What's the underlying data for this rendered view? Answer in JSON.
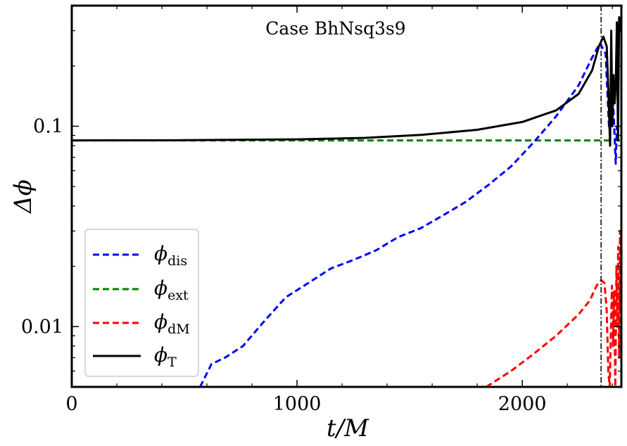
{
  "chart_data": {
    "type": "line",
    "annotation": "Case BhNsq3s9",
    "xlabel": "t/M",
    "ylabel": "Δϕ",
    "xlim": [
      0,
      2440
    ],
    "ylim": [
      0.005,
      0.4
    ],
    "yscale": "log",
    "x_ticks": [
      {
        "value": 0,
        "label": "0"
      },
      {
        "value": 1000,
        "label": "1000"
      },
      {
        "value": 2000,
        "label": "2000"
      }
    ],
    "y_ticks": [
      {
        "value": 0.1,
        "label": "0.1"
      },
      {
        "value": 0.01,
        "label": "0.01"
      }
    ],
    "vline": {
      "x": 2350,
      "style": "dashdot",
      "color": "#000000"
    },
    "legend_position": "lower-left",
    "series": [
      {
        "name": "ϕ",
        "subscript": "dis",
        "color": "#0000ff",
        "style": "dashed",
        "points": [
          [
            570,
            0.005
          ],
          [
            620,
            0.0065
          ],
          [
            680,
            0.007
          ],
          [
            760,
            0.008
          ],
          [
            850,
            0.0105
          ],
          [
            950,
            0.014
          ],
          [
            1050,
            0.0165
          ],
          [
            1150,
            0.0195
          ],
          [
            1250,
            0.0215
          ],
          [
            1350,
            0.024
          ],
          [
            1450,
            0.028
          ],
          [
            1550,
            0.031
          ],
          [
            1650,
            0.036
          ],
          [
            1750,
            0.042
          ],
          [
            1850,
            0.051
          ],
          [
            1950,
            0.063
          ],
          [
            2050,
            0.083
          ],
          [
            2150,
            0.112
          ],
          [
            2250,
            0.16
          ],
          [
            2310,
            0.22
          ],
          [
            2345,
            0.26
          ],
          [
            2370,
            0.23
          ],
          [
            2385,
            0.1
          ],
          [
            2395,
            0.15
          ],
          [
            2405,
            0.12
          ],
          [
            2415,
            0.065
          ],
          [
            2420,
            0.1
          ]
        ]
      },
      {
        "name": "ϕ",
        "subscript": "ext",
        "color": "#008000",
        "style": "dashed",
        "points": [
          [
            0,
            0.085
          ],
          [
            2440,
            0.085
          ]
        ]
      },
      {
        "name": "ϕ",
        "subscript": "dM",
        "color": "#ff0000",
        "style": "dashed",
        "points": [
          [
            1840,
            0.005
          ],
          [
            1950,
            0.006
          ],
          [
            2050,
            0.0073
          ],
          [
            2150,
            0.009
          ],
          [
            2250,
            0.0115
          ],
          [
            2300,
            0.0135
          ],
          [
            2330,
            0.016
          ],
          [
            2350,
            0.017
          ],
          [
            2365,
            0.0165
          ],
          [
            2375,
            0.012
          ],
          [
            2382,
            0.006
          ],
          [
            2388,
            0.005
          ],
          [
            2393,
            0.009
          ],
          [
            2398,
            0.016
          ],
          [
            2403,
            0.008
          ],
          [
            2408,
            0.015
          ],
          [
            2413,
            0.005
          ],
          [
            2418,
            0.02
          ],
          [
            2422,
            0.01
          ],
          [
            2426,
            0.025
          ],
          [
            2430,
            0.007
          ],
          [
            2434,
            0.03
          ],
          [
            2437,
            0.012
          ],
          [
            2440,
            0.033
          ]
        ]
      },
      {
        "name": "ϕ",
        "subscript": "T",
        "color": "#000000",
        "style": "solid",
        "points": [
          [
            0,
            0.085
          ],
          [
            500,
            0.0852
          ],
          [
            1000,
            0.086
          ],
          [
            1300,
            0.0875
          ],
          [
            1550,
            0.0905
          ],
          [
            1800,
            0.096
          ],
          [
            2000,
            0.105
          ],
          [
            2150,
            0.12
          ],
          [
            2250,
            0.145
          ],
          [
            2310,
            0.19
          ],
          [
            2340,
            0.25
          ],
          [
            2360,
            0.28
          ],
          [
            2375,
            0.25
          ],
          [
            2383,
            0.14
          ],
          [
            2390,
            0.08
          ],
          [
            2395,
            0.3
          ],
          [
            2400,
            0.1
          ],
          [
            2405,
            0.18
          ],
          [
            2410,
            0.13
          ],
          [
            2415,
            0.16
          ],
          [
            2420,
            0.33
          ],
          [
            2425,
            0.085
          ],
          [
            2430,
            0.35
          ],
          [
            2435,
            0.3
          ],
          [
            2440,
            0.35
          ]
        ]
      }
    ]
  }
}
